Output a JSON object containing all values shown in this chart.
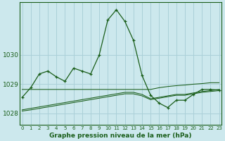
{
  "title": "Graphe pression niveau de la mer (hPa)",
  "bg_color": "#cce8ed",
  "grid_color": "#aad0d8",
  "line_color": "#1a5e1a",
  "x_labels": [
    "0",
    "1",
    "2",
    "3",
    "4",
    "5",
    "6",
    "7",
    "8",
    "9",
    "10",
    "11",
    "12",
    "13",
    "14",
    "15",
    "16",
    "17",
    "18",
    "19",
    "20",
    "21",
    "22",
    "23"
  ],
  "y_ticks": [
    1028,
    1029,
    1030
  ],
  "ylim": [
    1027.6,
    1031.8
  ],
  "xlim": [
    -0.3,
    23.3
  ],
  "main_line": [
    1028.55,
    1028.88,
    1029.35,
    1029.45,
    1029.25,
    1029.1,
    1029.55,
    1029.45,
    1029.35,
    1030.0,
    1031.2,
    1031.55,
    1031.15,
    1030.5,
    1029.3,
    1028.62,
    1028.35,
    1028.2,
    1028.45,
    1028.45,
    1028.65,
    1028.82,
    1028.82,
    1028.8
  ],
  "flat_line": [
    1028.82,
    1028.82,
    1028.82,
    1028.82,
    1028.82,
    1028.82,
    1028.82,
    1028.82,
    1028.82,
    1028.82,
    1028.82,
    1028.82,
    1028.82,
    1028.82,
    1028.82,
    1028.82,
    1028.88,
    1028.92,
    1028.95,
    1028.97,
    1029.0,
    1029.02,
    1029.05,
    1029.05
  ],
  "slope_line1": [
    1028.12,
    1028.17,
    1028.22,
    1028.27,
    1028.32,
    1028.37,
    1028.42,
    1028.47,
    1028.52,
    1028.57,
    1028.62,
    1028.67,
    1028.72,
    1028.72,
    1028.65,
    1028.5,
    1028.55,
    1028.6,
    1028.65,
    1028.65,
    1028.7,
    1028.75,
    1028.78,
    1028.82
  ],
  "slope_line2": [
    1028.08,
    1028.12,
    1028.17,
    1028.22,
    1028.27,
    1028.32,
    1028.37,
    1028.42,
    1028.47,
    1028.52,
    1028.57,
    1028.62,
    1028.67,
    1028.67,
    1028.6,
    1028.47,
    1028.52,
    1028.57,
    1028.62,
    1028.62,
    1028.67,
    1028.72,
    1028.75,
    1028.78
  ]
}
